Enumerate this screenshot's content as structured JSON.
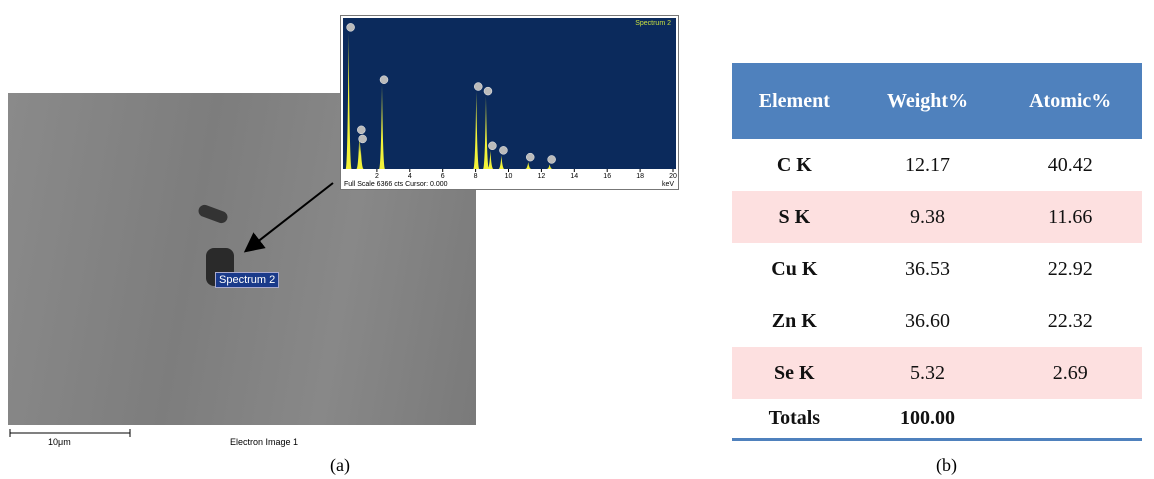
{
  "panel_a": {
    "label": "(a)",
    "sem_image": {
      "scale_bar": "10μm",
      "caption": "Electron Image 1",
      "marker": "Spectrum 2"
    },
    "spectrum": {
      "title": "Spectrum 2",
      "footer": "Full Scale 6366 cts Cursor: 0.000",
      "x_unit": "keV",
      "xlim": [
        0,
        20
      ],
      "xticks": [
        2,
        4,
        6,
        8,
        10,
        12,
        14,
        16,
        18,
        20
      ],
      "ylim": [
        0,
        6366
      ],
      "peaks": [
        {
          "keV": 0.28,
          "cts": 6000
        },
        {
          "keV": 0.93,
          "cts": 1500
        },
        {
          "keV": 1.01,
          "cts": 1100
        },
        {
          "keV": 2.31,
          "cts": 3700
        },
        {
          "keV": 8.04,
          "cts": 3400
        },
        {
          "keV": 8.63,
          "cts": 3200
        },
        {
          "keV": 8.9,
          "cts": 800
        },
        {
          "keV": 9.57,
          "cts": 600
        },
        {
          "keV": 11.2,
          "cts": 300
        },
        {
          "keV": 12.5,
          "cts": 200
        }
      ]
    }
  },
  "panel_b": {
    "label": "(b)",
    "table": {
      "header": [
        "Element",
        "Weight%",
        "Atomic%"
      ],
      "rows": [
        [
          "C K",
          "12.17",
          "40.42"
        ],
        [
          "S K",
          "9.38",
          "11.66"
        ],
        [
          "Cu K",
          "36.53",
          "22.92"
        ],
        [
          "Zn  K",
          "36.60",
          "22.32"
        ],
        [
          "Se K",
          "5.32",
          "2.69"
        ],
        [
          "Totals",
          "100.00"
        ]
      ]
    }
  }
}
